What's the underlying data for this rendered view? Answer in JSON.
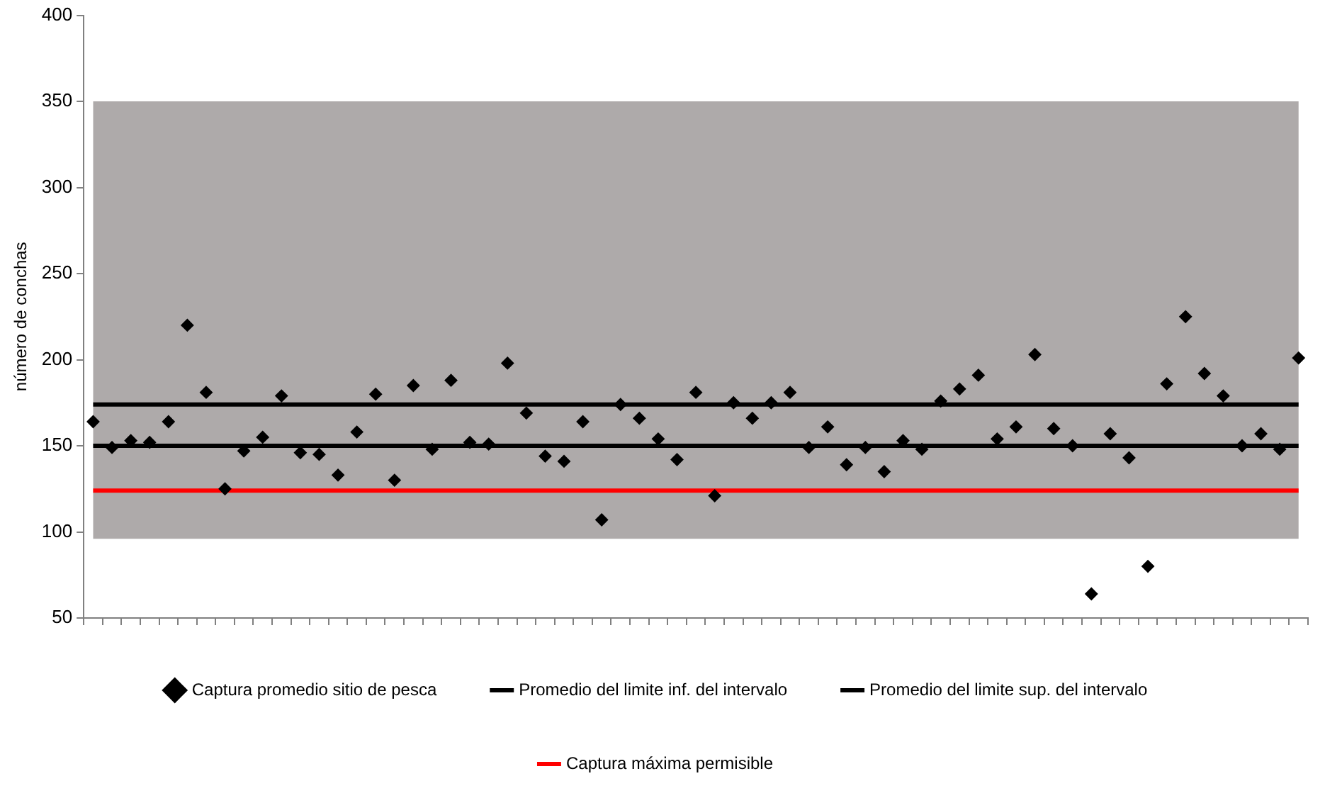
{
  "chart_data": {
    "type": "scatter",
    "ylabel": "número de conchas",
    "ylim": [
      50,
      400
    ],
    "yticks": [
      50,
      100,
      150,
      200,
      250,
      300,
      350,
      400
    ],
    "tick_labels": "y",
    "grid": false,
    "legend": "bottom",
    "categories": [
      null,
      null,
      null,
      null,
      null,
      null,
      null,
      null,
      null,
      null,
      null,
      null,
      null,
      null,
      null,
      null,
      null,
      null,
      null,
      null,
      null,
      null,
      null,
      null,
      null,
      null,
      null,
      null,
      null,
      null,
      null,
      null,
      null,
      null,
      null,
      null,
      null,
      null,
      null,
      null,
      null,
      null,
      null,
      null,
      null,
      null,
      null,
      null,
      null,
      null,
      null,
      null,
      null,
      null,
      null,
      null,
      null,
      null,
      null,
      null,
      null,
      null,
      null,
      null,
      null
    ],
    "bands": [
      {
        "axis": "y",
        "from": 96,
        "to": 350,
        "color": "#aeaaaa"
      }
    ],
    "series": [
      {
        "name": "Captura promedio sitio de pesca",
        "marker": "diamond",
        "color": "#000000",
        "values": [
          164,
          149,
          153,
          152,
          164,
          220,
          181,
          125,
          147,
          155,
          179,
          146,
          145,
          133,
          158,
          180,
          130,
          185,
          148,
          188,
          152,
          151,
          198,
          169,
          144,
          141,
          164,
          107,
          174,
          166,
          154,
          142,
          181,
          121,
          175,
          166,
          175,
          181,
          149,
          161,
          139,
          149,
          135,
          153,
          148,
          176,
          183,
          191,
          154,
          161,
          203,
          160,
          150,
          64,
          157,
          143,
          80,
          186,
          225,
          192,
          179,
          150,
          157,
          148,
          201
        ]
      },
      {
        "name": "Promedio del limite inf. del intervalo",
        "type": "line",
        "color": "#000000",
        "values": [
          150,
          150,
          150,
          150,
          150,
          150,
          150,
          150,
          150,
          150,
          150,
          150,
          150,
          150,
          150,
          150,
          150,
          150,
          150,
          150,
          150,
          150,
          150,
          150,
          150,
          150,
          150,
          150,
          150,
          150,
          150,
          150,
          150,
          150,
          150,
          150,
          150,
          150,
          150,
          150,
          150,
          150,
          150,
          150,
          150,
          150,
          150,
          150,
          150,
          150,
          150,
          150,
          150,
          150,
          150,
          150,
          150,
          150,
          150,
          150,
          150,
          150,
          150,
          150,
          150
        ]
      },
      {
        "name": "Promedio del limite sup. del intervalo",
        "type": "line",
        "color": "#000000",
        "values": [
          174,
          174,
          174,
          174,
          174,
          174,
          174,
          174,
          174,
          174,
          174,
          174,
          174,
          174,
          174,
          174,
          174,
          174,
          174,
          174,
          174,
          174,
          174,
          174,
          174,
          174,
          174,
          174,
          174,
          174,
          174,
          174,
          174,
          174,
          174,
          174,
          174,
          174,
          174,
          174,
          174,
          174,
          174,
          174,
          174,
          174,
          174,
          174,
          174,
          174,
          174,
          174,
          174,
          174,
          174,
          174,
          174,
          174,
          174,
          174,
          174,
          174,
          174,
          174,
          174
        ]
      },
      {
        "name": "Captura máxima permisible",
        "type": "line",
        "color": "#ff0000",
        "values": [
          124,
          124,
          124,
          124,
          124,
          124,
          124,
          124,
          124,
          124,
          124,
          124,
          124,
          124,
          124,
          124,
          124,
          124,
          124,
          124,
          124,
          124,
          124,
          124,
          124,
          124,
          124,
          124,
          124,
          124,
          124,
          124,
          124,
          124,
          124,
          124,
          124,
          124,
          124,
          124,
          124,
          124,
          124,
          124,
          124,
          124,
          124,
          124,
          124,
          124,
          124,
          124,
          124,
          124,
          124,
          124,
          124,
          124,
          124,
          124,
          124,
          124,
          124,
          124,
          124
        ]
      }
    ]
  }
}
